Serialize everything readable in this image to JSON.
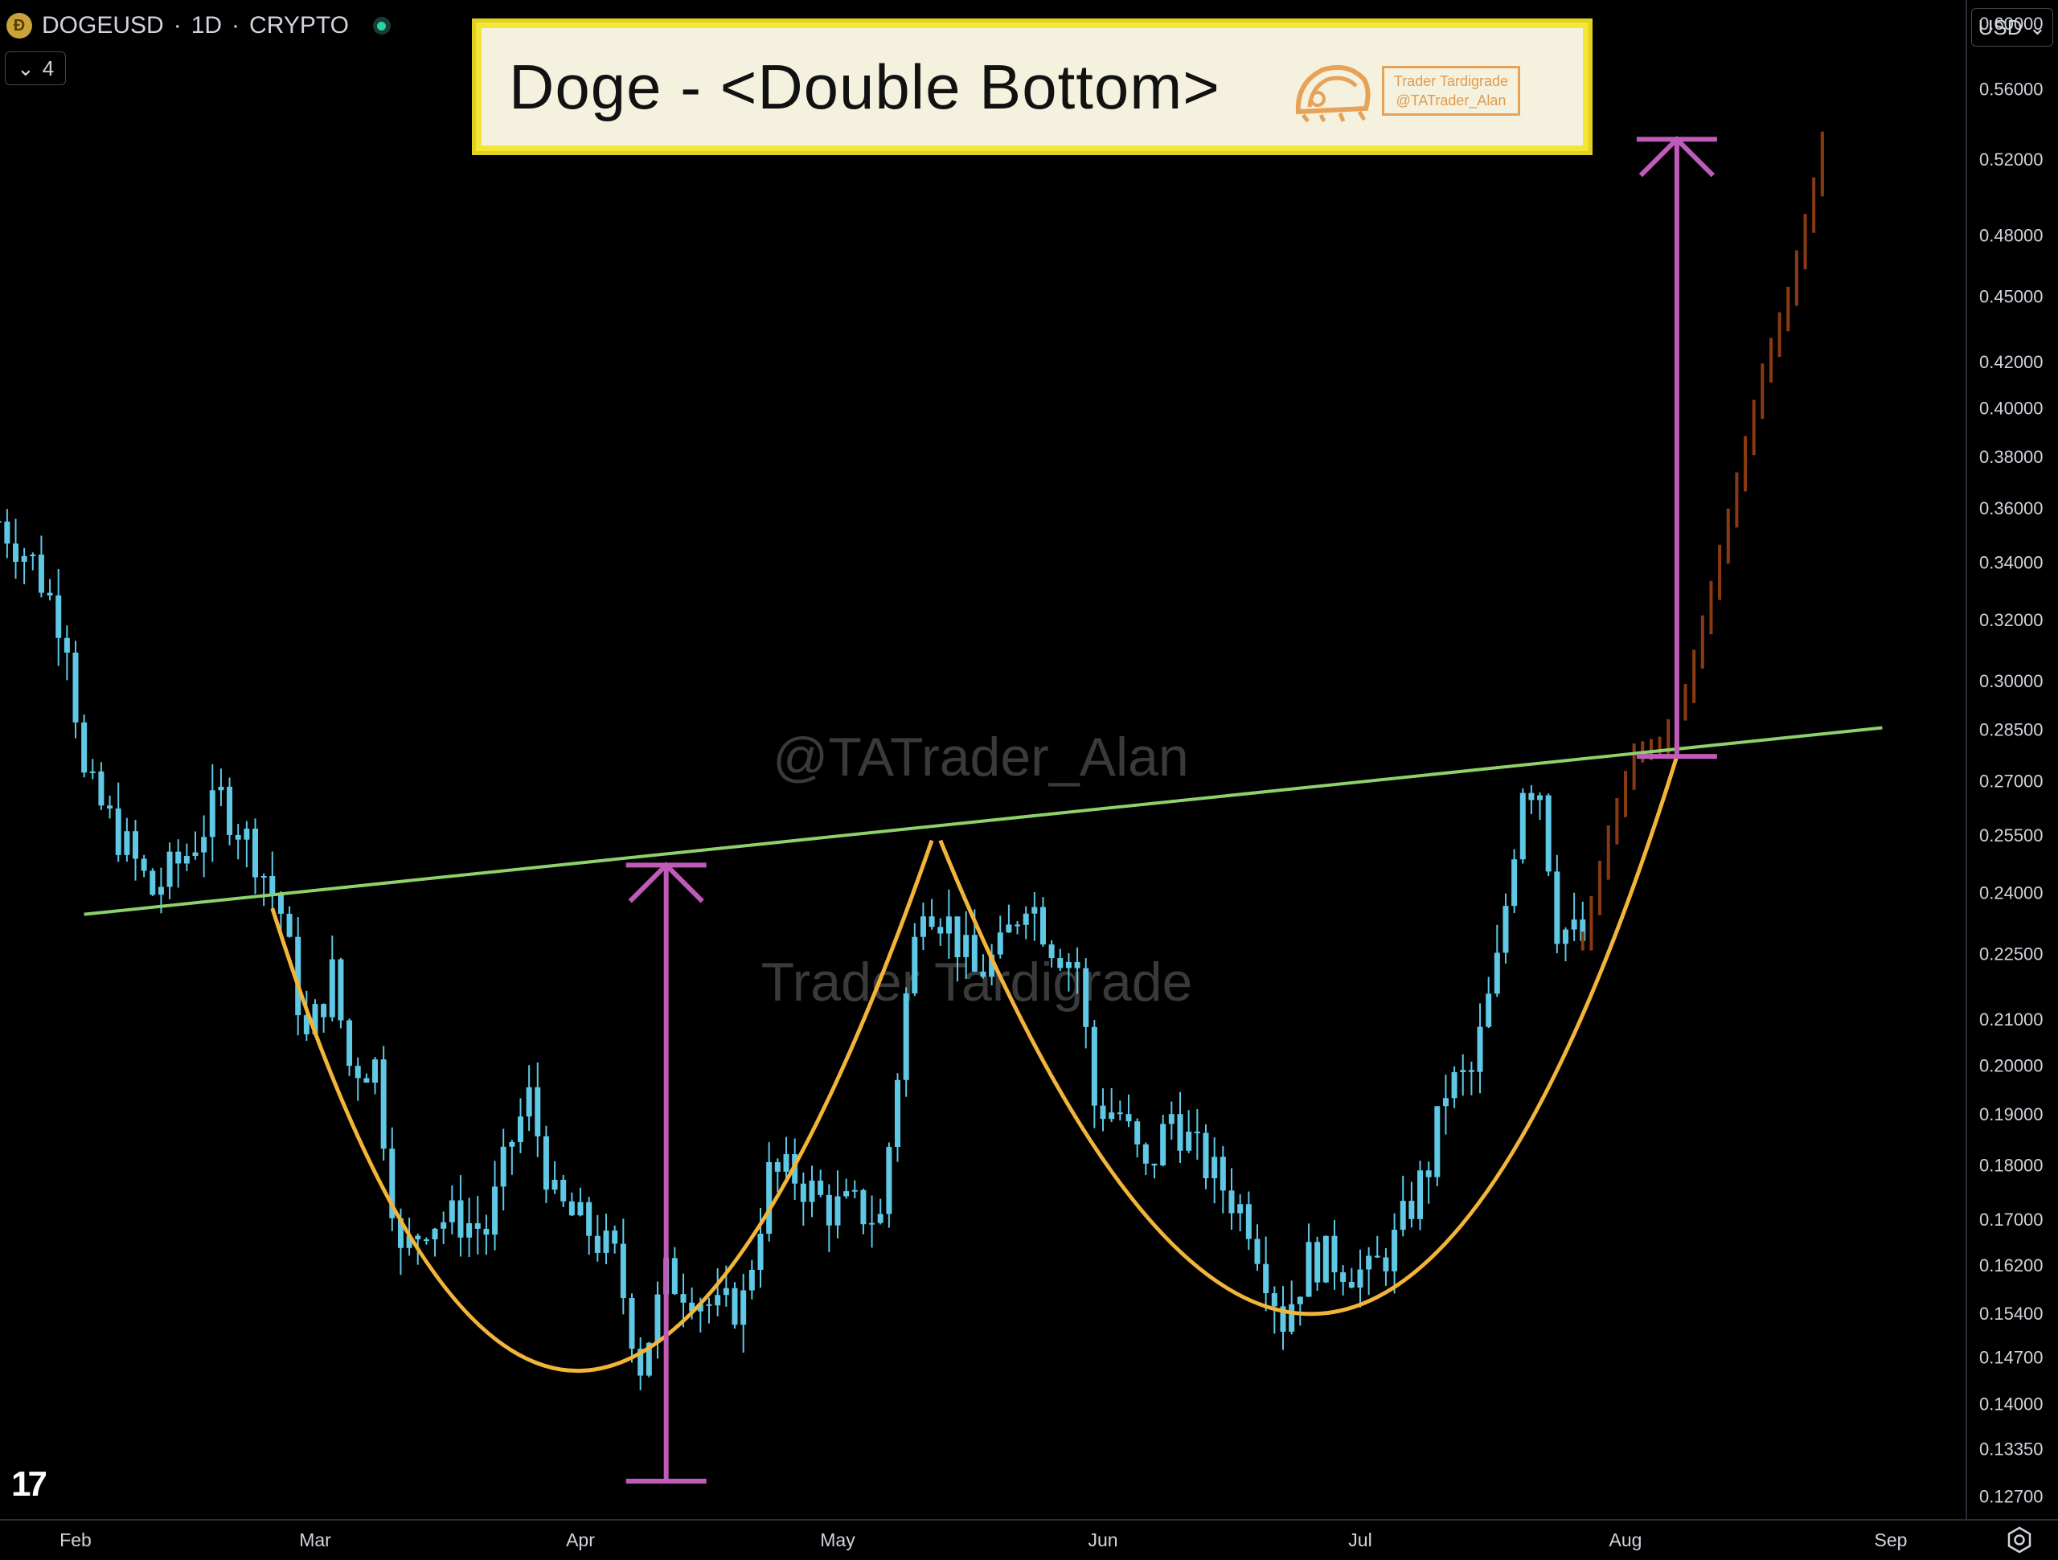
{
  "header": {
    "symbol": "DOGEUSD",
    "sep1": "·",
    "interval": "1D",
    "sep2": "·",
    "exchange": "CRYPTO",
    "indicator_count": "4"
  },
  "title_banner": {
    "text": "Doge - <Double Bottom>",
    "author_line1": "Trader Tardigrade",
    "author_line2": "@TATrader_Alan"
  },
  "currency_selector": "USD",
  "watermarks": [
    "@TATrader_Alan",
    "Trader Tardigrade"
  ],
  "colors": {
    "background": "#000000",
    "candle": "#5ec8e5",
    "projected_candle": "#8a3a12",
    "neckline": "#8fd16a",
    "curve": "#f2b53a",
    "measure_arrow": "#c05bb8",
    "banner_border": "#f4e634"
  },
  "chart_data": {
    "type": "candlestick",
    "scale": "log",
    "ylim": [
      0.125,
      0.615
    ],
    "x_tick_labels": [
      "Feb",
      "Mar",
      "Apr",
      "May",
      "Jun",
      "Jul",
      "Aug",
      "Sep"
    ],
    "y_tick_labels": [
      "0.60000",
      "0.56000",
      "0.52000",
      "0.48000",
      "0.45000",
      "0.42000",
      "0.40000",
      "0.38000",
      "0.36000",
      "0.34000",
      "0.32000",
      "0.30000",
      "0.28500",
      "0.27000",
      "0.25500",
      "0.24000",
      "0.22500",
      "0.21000",
      "0.20000",
      "0.19000",
      "0.18000",
      "0.17000",
      "0.16200",
      "0.15400",
      "0.14700",
      "0.14000",
      "0.13350",
      "0.12700"
    ],
    "y_tick_values": [
      0.6,
      0.56,
      0.52,
      0.48,
      0.45,
      0.42,
      0.4,
      0.38,
      0.36,
      0.34,
      0.32,
      0.3,
      0.285,
      0.27,
      0.255,
      0.24,
      0.225,
      0.21,
      0.2,
      0.19,
      0.18,
      0.17,
      0.162,
      0.154,
      0.147,
      0.14,
      0.1335,
      0.127
    ],
    "x_tick_dates": [
      "2025-02-01",
      "2025-03-01",
      "2025-04-01",
      "2025-05-01",
      "2025-06-01",
      "2025-07-01",
      "2025-08-01",
      "2025-09-01"
    ],
    "date_range": [
      "2025-01-23",
      "2025-09-01"
    ],
    "price_path": [
      [
        "2025-01-23",
        0.355
      ],
      [
        "2025-01-27",
        0.34
      ],
      [
        "2025-01-31",
        0.315
      ],
      [
        "2025-02-02",
        0.27
      ],
      [
        "2025-02-06",
        0.255
      ],
      [
        "2025-02-10",
        0.24
      ],
      [
        "2025-02-14",
        0.25
      ],
      [
        "2025-02-18",
        0.265
      ],
      [
        "2025-02-22",
        0.25
      ],
      [
        "2025-02-25",
        0.235
      ],
      [
        "2025-02-28",
        0.205
      ],
      [
        "2025-03-03",
        0.22
      ],
      [
        "2025-03-05",
        0.2
      ],
      [
        "2025-03-08",
        0.2
      ],
      [
        "2025-03-11",
        0.163
      ],
      [
        "2025-03-14",
        0.17
      ],
      [
        "2025-03-18",
        0.17
      ],
      [
        "2025-03-21",
        0.168
      ],
      [
        "2025-03-24",
        0.185
      ],
      [
        "2025-03-26",
        0.193
      ],
      [
        "2025-03-29",
        0.173
      ],
      [
        "2025-04-02",
        0.168
      ],
      [
        "2025-04-05",
        0.163
      ],
      [
        "2025-04-08",
        0.146
      ],
      [
        "2025-04-11",
        0.16
      ],
      [
        "2025-04-14",
        0.158
      ],
      [
        "2025-04-17",
        0.154
      ],
      [
        "2025-04-20",
        0.156
      ],
      [
        "2025-04-23",
        0.178
      ],
      [
        "2025-04-26",
        0.178
      ],
      [
        "2025-04-30",
        0.172
      ],
      [
        "2025-05-03",
        0.172
      ],
      [
        "2025-05-06",
        0.17
      ],
      [
        "2025-05-09",
        0.215
      ],
      [
        "2025-05-11",
        0.24
      ],
      [
        "2025-05-14",
        0.232
      ],
      [
        "2025-05-17",
        0.22
      ],
      [
        "2025-05-20",
        0.225
      ],
      [
        "2025-05-23",
        0.24
      ],
      [
        "2025-05-26",
        0.228
      ],
      [
        "2025-05-29",
        0.222
      ],
      [
        "2025-05-31",
        0.192
      ],
      [
        "2025-06-03",
        0.19
      ],
      [
        "2025-06-06",
        0.178
      ],
      [
        "2025-06-09",
        0.19
      ],
      [
        "2025-06-12",
        0.182
      ],
      [
        "2025-06-15",
        0.176
      ],
      [
        "2025-06-18",
        0.17
      ],
      [
        "2025-06-22",
        0.153
      ],
      [
        "2025-06-25",
        0.163
      ],
      [
        "2025-06-28",
        0.163
      ],
      [
        "2025-07-02",
        0.16
      ],
      [
        "2025-07-05",
        0.166
      ],
      [
        "2025-07-09",
        0.18
      ],
      [
        "2025-07-11",
        0.195
      ],
      [
        "2025-07-14",
        0.198
      ],
      [
        "2025-07-17",
        0.222
      ],
      [
        "2025-07-20",
        0.27
      ],
      [
        "2025-07-22",
        0.268
      ],
      [
        "2025-07-24",
        0.232
      ],
      [
        "2025-07-27",
        0.228
      ]
    ],
    "projected_path": [
      [
        "2025-07-27",
        0.228
      ],
      [
        "2025-07-30",
        0.255
      ],
      [
        "2025-08-02",
        0.278
      ],
      [
        "2025-08-05",
        0.28
      ],
      [
        "2025-08-08",
        0.296
      ],
      [
        "2025-08-11",
        0.33
      ],
      [
        "2025-08-14",
        0.37
      ],
      [
        "2025-08-17",
        0.415
      ],
      [
        "2025-08-20",
        0.45
      ],
      [
        "2025-08-23",
        0.505
      ],
      [
        "2025-08-24",
        0.53
      ]
    ],
    "neckline": [
      [
        "2025-02-02",
        0.2345
      ],
      [
        "2025-08-31",
        0.2855
      ]
    ],
    "curves": [
      {
        "start": [
          "2025-02-24",
          0.236
        ],
        "mid": [
          "2025-04-02",
          0.145
        ],
        "end": [
          "2025-05-12",
          0.2535
        ]
      },
      {
        "start": [
          "2025-05-13",
          0.2535
        ],
        "mid": [
          "2025-06-27",
          0.154
        ],
        "end": [
          "2025-08-07",
          0.277
        ]
      }
    ],
    "measure_arrows": [
      {
        "date": "2025-04-11",
        "from": 0.129,
        "to": 0.247
      },
      {
        "date": "2025-08-07",
        "from": 0.277,
        "to": 0.531
      }
    ]
  }
}
